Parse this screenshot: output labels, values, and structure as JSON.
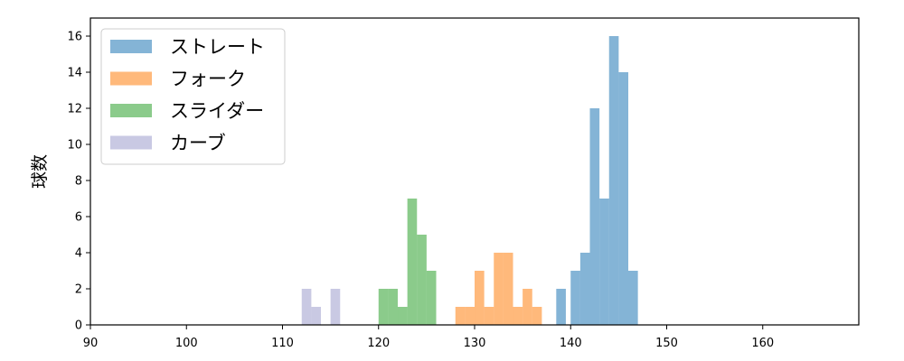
{
  "chart_data": {
    "type": "bar",
    "subtype": "histogram",
    "title": "",
    "xlabel": "",
    "ylabel": "球数",
    "xlim": [
      90,
      170
    ],
    "ylim": [
      0,
      17
    ],
    "xticks": [
      90,
      100,
      110,
      120,
      130,
      140,
      150,
      160
    ],
    "yticks": [
      0,
      2,
      4,
      6,
      8,
      10,
      12,
      14,
      16
    ],
    "grid": false,
    "legend_position": "top-left",
    "series": [
      {
        "name": "ストレート",
        "color": "#1f77b4",
        "bins": [
          {
            "x0": 138.5,
            "x1": 139.5,
            "count": 2
          },
          {
            "x0": 140.0,
            "x1": 141.0,
            "count": 3
          },
          {
            "x0": 141.0,
            "x1": 142.0,
            "count": 4
          },
          {
            "x0": 142.0,
            "x1": 143.0,
            "count": 12
          },
          {
            "x0": 143.0,
            "x1": 144.0,
            "count": 7
          },
          {
            "x0": 144.0,
            "x1": 145.0,
            "count": 16
          },
          {
            "x0": 145.0,
            "x1": 146.0,
            "count": 14
          },
          {
            "x0": 146.0,
            "x1": 147.0,
            "count": 3
          }
        ]
      },
      {
        "name": "フォーク",
        "color": "#ff7f0e",
        "bins": [
          {
            "x0": 128.0,
            "x1": 129.0,
            "count": 1
          },
          {
            "x0": 129.0,
            "x1": 130.0,
            "count": 1
          },
          {
            "x0": 130.0,
            "x1": 131.0,
            "count": 3
          },
          {
            "x0": 131.0,
            "x1": 132.0,
            "count": 1
          },
          {
            "x0": 132.0,
            "x1": 133.0,
            "count": 4
          },
          {
            "x0": 133.0,
            "x1": 134.0,
            "count": 4
          },
          {
            "x0": 134.0,
            "x1": 135.0,
            "count": 1
          },
          {
            "x0": 135.0,
            "x1": 136.0,
            "count": 2
          },
          {
            "x0": 136.0,
            "x1": 137.0,
            "count": 1
          }
        ]
      },
      {
        "name": "スライダー",
        "color": "#2ca02c",
        "bins": [
          {
            "x0": 120.0,
            "x1": 121.0,
            "count": 2
          },
          {
            "x0": 121.0,
            "x1": 122.0,
            "count": 2
          },
          {
            "x0": 122.0,
            "x1": 123.0,
            "count": 1
          },
          {
            "x0": 123.0,
            "x1": 124.0,
            "count": 7
          },
          {
            "x0": 124.0,
            "x1": 125.0,
            "count": 5
          },
          {
            "x0": 125.0,
            "x1": 126.0,
            "count": 3
          }
        ]
      },
      {
        "name": "カーブ",
        "color": "#9c9ccc",
        "bins": [
          {
            "x0": 112.0,
            "x1": 113.0,
            "count": 2
          },
          {
            "x0": 113.0,
            "x1": 114.0,
            "count": 1
          },
          {
            "x0": 115.0,
            "x1": 116.0,
            "count": 2
          }
        ]
      }
    ]
  }
}
